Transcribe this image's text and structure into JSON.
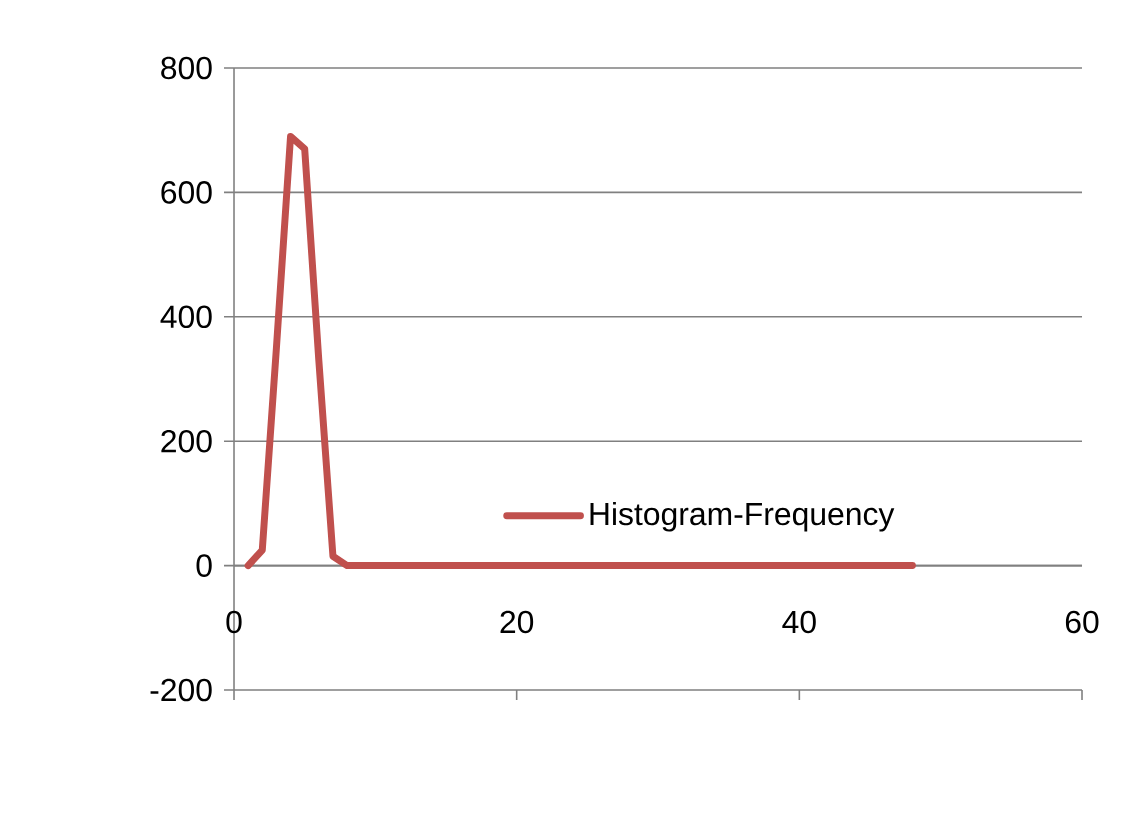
{
  "chart_data": {
    "type": "line",
    "x": [
      1,
      2,
      3,
      4,
      5,
      6,
      7,
      8,
      9,
      10,
      48
    ],
    "series": [
      {
        "name": "Histogram-Frequency",
        "color": "#c0504d",
        "values": [
          0,
          25,
          350,
          690,
          670,
          330,
          15,
          0,
          0,
          0,
          0
        ]
      }
    ],
    "xlim": [
      0,
      60
    ],
    "xticks": [
      0,
      20,
      40,
      60
    ],
    "ylim": [
      -200,
      800
    ],
    "yticks": [
      -200,
      0,
      200,
      400,
      600,
      800
    ],
    "grid": "y",
    "legend": "right",
    "marker": "none",
    "line_style": "solid"
  }
}
